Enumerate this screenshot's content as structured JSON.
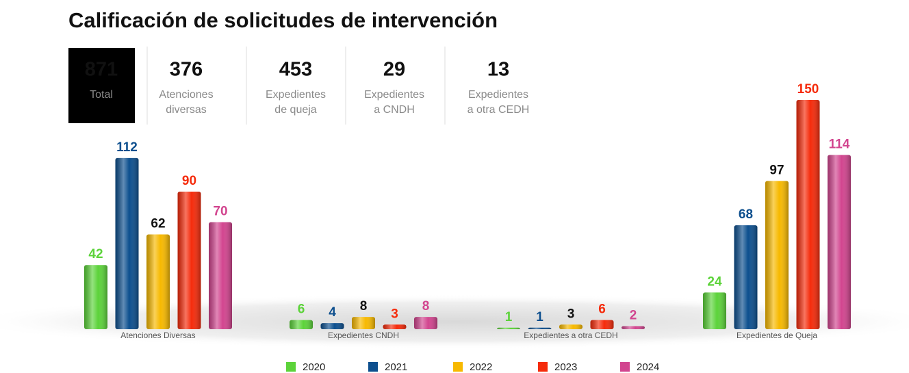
{
  "chart_data": {
    "type": "bar",
    "title": "Calificación de solicitudes de intervención",
    "summary": [
      {
        "value": 871,
        "label": "Total"
      },
      {
        "value": 376,
        "label": "Atenciones diversas"
      },
      {
        "value": 453,
        "label": "Expedientes de queja"
      },
      {
        "value": 29,
        "label": "Expedientes a CNDH"
      },
      {
        "value": 13,
        "label": "Expedientes a otra CEDH"
      }
    ],
    "categories": [
      "Atenciones Diversas",
      "Expedientes CNDH",
      "Expedientes a otra CEDH",
      "Expedientes de Queja"
    ],
    "series": [
      {
        "name": "2020",
        "color": "#5cd33a",
        "label_color": "#5cd33a",
        "values": [
          42,
          6,
          1,
          24
        ]
      },
      {
        "name": "2021",
        "color": "#0d4f8e",
        "label_color": "#0d4f8e",
        "values": [
          112,
          4,
          1,
          68
        ]
      },
      {
        "name": "2022",
        "color": "#f7b900",
        "label_color": "#111111",
        "values": [
          62,
          8,
          3,
          97
        ]
      },
      {
        "name": "2023",
        "color": "#f52b0b",
        "label_color": "#f52b0b",
        "values": [
          90,
          3,
          6,
          150
        ]
      },
      {
        "name": "2024",
        "color": "#d2458f",
        "label_color": "#d2458f",
        "values": [
          70,
          8,
          2,
          114
        ]
      }
    ],
    "legend": "bottom"
  }
}
